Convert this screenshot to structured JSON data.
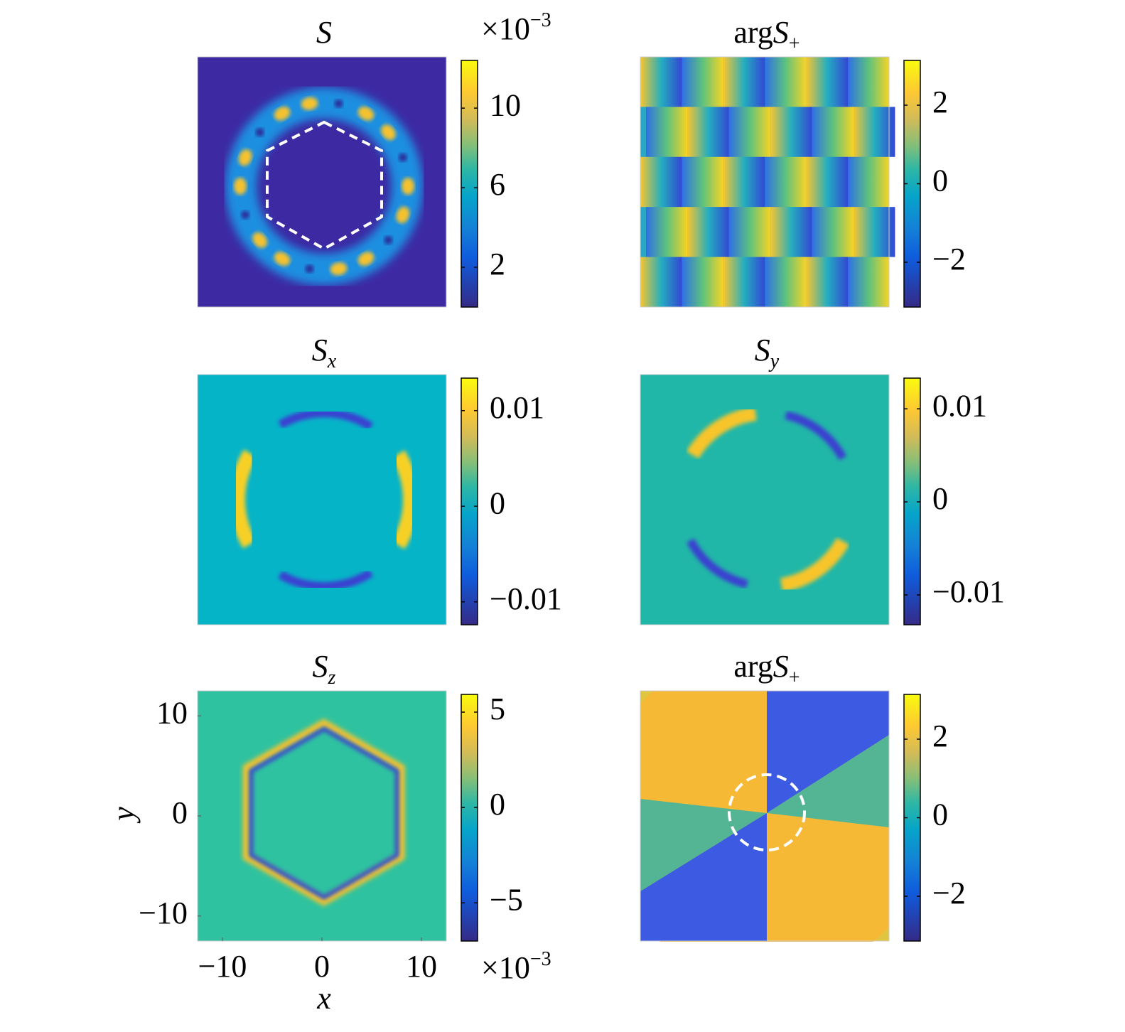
{
  "chart_data": [
    {
      "type": "heatmap",
      "title": "S",
      "clim": [
        0,
        12.4
      ],
      "cticks": [
        2,
        6,
        10
      ],
      "multiplier": "×10",
      "multiplier_exp": "−3"
    },
    {
      "type": "heatmap",
      "title_prefix": "arg",
      "title": "S",
      "subscript": "+",
      "clim": [
        -3.14,
        3.14
      ],
      "cticks": [
        {
          "value": -2,
          "label": "−2"
        },
        0,
        2
      ]
    },
    {
      "type": "heatmap",
      "title": "S",
      "subscript": "x",
      "clim": [
        -0.0124,
        0.0134
      ],
      "cticks": [
        {
          "value": -0.01,
          "label": "−0.01"
        },
        0,
        0.01
      ]
    },
    {
      "type": "heatmap",
      "title": "S",
      "subscript": "y",
      "clim": [
        -0.0132,
        0.0133
      ],
      "cticks": [
        {
          "value": -0.01,
          "label": "−0.01"
        },
        0,
        0.01
      ]
    },
    {
      "type": "heatmap",
      "title": "S",
      "subscript": "z",
      "clim": [
        -7.0,
        5.93
      ],
      "cticks": [
        {
          "value": -5,
          "label": "−5"
        },
        0,
        5
      ],
      "multiplier": "×10",
      "multiplier_exp": "−3",
      "xlabel": "x",
      "ylabel": "y",
      "xlim": [
        -12.5,
        12.5
      ],
      "ylim": [
        -12.5,
        12.5
      ],
      "xticks": [
        {
          "value": -10,
          "label": "−10"
        },
        0,
        10
      ],
      "yticks": [
        {
          "value": -10,
          "label": "−10"
        },
        0,
        10
      ]
    },
    {
      "type": "heatmap",
      "title_prefix": "arg",
      "title": "S",
      "subscript": "+",
      "clim": [
        -3.14,
        3.14
      ],
      "cticks": [
        {
          "value": -2,
          "label": "−2"
        },
        0,
        2
      ]
    }
  ]
}
